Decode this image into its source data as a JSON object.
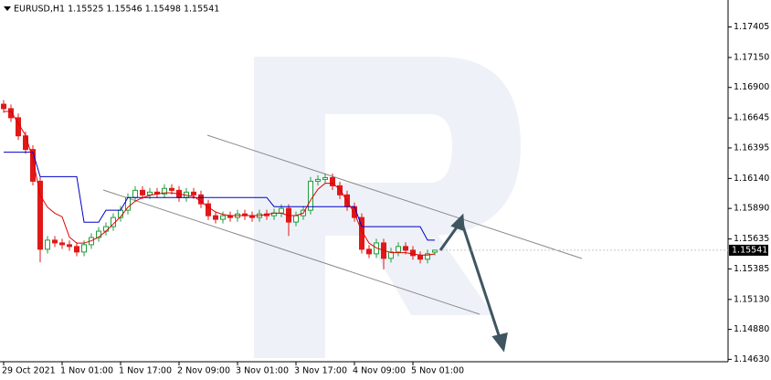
{
  "chart_data": {
    "type": "candlestick",
    "title": "EURUSD,H1  1.15525 1.15546 1.15498 1.15541",
    "categories": [
      "29 Oct 2021",
      null,
      null,
      null,
      null,
      null,
      null,
      null,
      "1 Nov 01:00",
      null,
      null,
      null,
      null,
      null,
      null,
      null,
      "1 Nov 17:00",
      null,
      null,
      null,
      null,
      null,
      null,
      null,
      "2 Nov 09:00",
      null,
      null,
      null,
      null,
      null,
      null,
      null,
      "3 Nov 01:00",
      null,
      null,
      null,
      null,
      null,
      null,
      null,
      "3 Nov 17:00",
      null,
      null,
      null,
      null,
      null,
      null,
      null,
      "4 Nov 09:00",
      null,
      null,
      null,
      null,
      null,
      null,
      null,
      "5 Nov 01:00",
      null,
      null,
      null
    ],
    "open": [
      1.1676,
      1.16723,
      1.16647,
      1.16496,
      1.16382,
      1.16117,
      1.15549,
      1.15625,
      1.15602,
      1.15587,
      1.15572,
      1.15526,
      1.15587,
      1.15647,
      1.157,
      1.15738,
      1.15814,
      1.15875,
      1.15981,
      1.16041,
      1.16003,
      1.16026,
      1.16011,
      1.16057,
      1.16041,
      1.15981,
      1.16026,
      1.16003,
      1.15928,
      1.15829,
      1.15799,
      1.15829,
      1.15814,
      1.15844,
      1.15829,
      1.15814,
      1.15844,
      1.15829,
      1.15852,
      1.1589,
      1.15776,
      1.15829,
      1.15875,
      1.16117,
      1.16132,
      1.16147,
      1.16079,
      1.16003,
      1.15905,
      1.15814,
      1.15549,
      1.15511,
      1.15602,
      1.15473,
      1.15526,
      1.15572,
      1.15541,
      1.15496,
      1.15466,
      1.15525
    ],
    "high": [
      1.16795,
      1.16758,
      1.16682,
      1.16531,
      1.16417,
      1.16152,
      1.1566,
      1.1566,
      1.15637,
      1.15622,
      1.15607,
      1.15622,
      1.15682,
      1.15735,
      1.15773,
      1.15849,
      1.1591,
      1.16016,
      1.16076,
      1.16076,
      1.16061,
      1.16061,
      1.16092,
      1.16092,
      1.16076,
      1.16061,
      1.16061,
      1.16038,
      1.15963,
      1.15864,
      1.15864,
      1.15864,
      1.15879,
      1.15879,
      1.15864,
      1.15879,
      1.15879,
      1.15887,
      1.15925,
      1.15925,
      1.15864,
      1.1591,
      1.16152,
      1.16167,
      1.16182,
      1.16182,
      1.16114,
      1.16038,
      1.1594,
      1.15849,
      1.15584,
      1.15637,
      1.15637,
      1.15561,
      1.15607,
      1.15607,
      1.15576,
      1.15531,
      1.15546,
      1.15546
    ],
    "low": [
      1.16688,
      1.16612,
      1.16461,
      1.16347,
      1.16082,
      1.1544,
      1.15514,
      1.15567,
      1.15552,
      1.15537,
      1.15491,
      1.15491,
      1.15552,
      1.15612,
      1.15665,
      1.15703,
      1.15779,
      1.1584,
      1.15946,
      1.15968,
      1.15968,
      1.15976,
      1.15976,
      1.16006,
      1.15946,
      1.15946,
      1.15968,
      1.15893,
      1.15794,
      1.15764,
      1.15764,
      1.15779,
      1.15779,
      1.15794,
      1.15779,
      1.15779,
      1.15794,
      1.15794,
      1.15817,
      1.1566,
      1.15741,
      1.15794,
      1.1584,
      1.16082,
      1.16097,
      1.16044,
      1.15968,
      1.1587,
      1.15779,
      1.15514,
      1.15476,
      1.15476,
      1.1538,
      1.15438,
      1.15491,
      1.15506,
      1.15461,
      1.15431,
      1.15431,
      1.15498
    ],
    "close": [
      1.16723,
      1.16647,
      1.16496,
      1.16382,
      1.16117,
      1.15549,
      1.15625,
      1.15602,
      1.15587,
      1.15572,
      1.15526,
      1.15587,
      1.15647,
      1.157,
      1.15738,
      1.15814,
      1.15875,
      1.15981,
      1.16041,
      1.16003,
      1.16026,
      1.16011,
      1.16057,
      1.16041,
      1.15981,
      1.16026,
      1.16003,
      1.15928,
      1.15829,
      1.15799,
      1.15829,
      1.15814,
      1.15844,
      1.15829,
      1.15814,
      1.15844,
      1.15829,
      1.15852,
      1.1589,
      1.15776,
      1.15829,
      1.15875,
      1.16117,
      1.16132,
      1.16147,
      1.16079,
      1.16003,
      1.15905,
      1.15814,
      1.15549,
      1.15511,
      1.15602,
      1.15473,
      1.15526,
      1.15572,
      1.15541,
      1.15496,
      1.15466,
      1.15511,
      1.15541
    ],
    "up_color": "#1f9e3a",
    "down_color": "#e01818",
    "lines": [
      {
        "color": "#0000c8",
        "values": [
          1.16359,
          1.16359,
          1.16359,
          1.16359,
          1.16359,
          1.16155,
          1.16155,
          1.16155,
          1.16155,
          1.16155,
          1.16155,
          1.15775,
          1.15775,
          1.15775,
          1.15875,
          1.15875,
          1.15875,
          1.15981,
          1.15981,
          1.15981,
          1.15981,
          1.15981,
          1.15981,
          1.15981,
          1.15981,
          1.15981,
          1.15981,
          1.15981,
          1.15981,
          1.15981,
          1.15981,
          1.15981,
          1.15981,
          1.15981,
          1.15981,
          1.15981,
          1.15981,
          1.15905,
          1.15905,
          1.15905,
          1.15905,
          1.15905,
          1.15905,
          1.15905,
          1.15905,
          1.15905,
          1.15905,
          1.15905,
          1.15905,
          1.15738,
          1.15738,
          1.15738,
          1.15738,
          1.15738,
          1.15738,
          1.15738,
          1.15738,
          1.15738,
          1.15625,
          1.15625
        ]
      },
      {
        "color": "#e00000",
        "values": [
          1.167,
          1.167,
          1.166,
          1.165,
          1.163,
          1.16,
          1.159,
          1.1585,
          1.1582,
          1.1565,
          1.156,
          1.156,
          1.1562,
          1.1565,
          1.157,
          1.1576,
          1.1582,
          1.159,
          1.1595,
          1.1598,
          1.16,
          1.1601,
          1.1602,
          1.1602,
          1.1601,
          1.16,
          1.1599,
          1.1595,
          1.159,
          1.1586,
          1.1584,
          1.1583,
          1.1583,
          1.1583,
          1.1583,
          1.1583,
          1.1584,
          1.1585,
          1.1585,
          1.1583,
          1.1583,
          1.1585,
          1.1596,
          1.1605,
          1.161,
          1.161,
          1.1605,
          1.1595,
          1.1585,
          1.157,
          1.156,
          1.1556,
          1.1554,
          1.1552,
          1.1552,
          1.1552,
          1.1551,
          1.155,
          1.155,
          1.1551
        ]
      }
    ],
    "ylim": [
      1.1461,
      1.1763
    ],
    "yticks": [
      1.17405,
      {
        "value": 1.1715,
        "label": "1.17150"
      },
      {
        "value": 1.169,
        "label": "1.16900"
      },
      1.16645,
      1.16395,
      {
        "value": 1.1614,
        "label": "1.16140"
      },
      {
        "value": 1.1589,
        "label": "1.15890"
      },
      1.15635,
      1.15385,
      {
        "value": 1.1513,
        "label": "1.15130"
      },
      {
        "value": 1.1488,
        "label": "1.14880"
      },
      {
        "value": 1.1463,
        "label": "1.14630"
      }
    ],
    "last_price": 1.15541
  }
}
